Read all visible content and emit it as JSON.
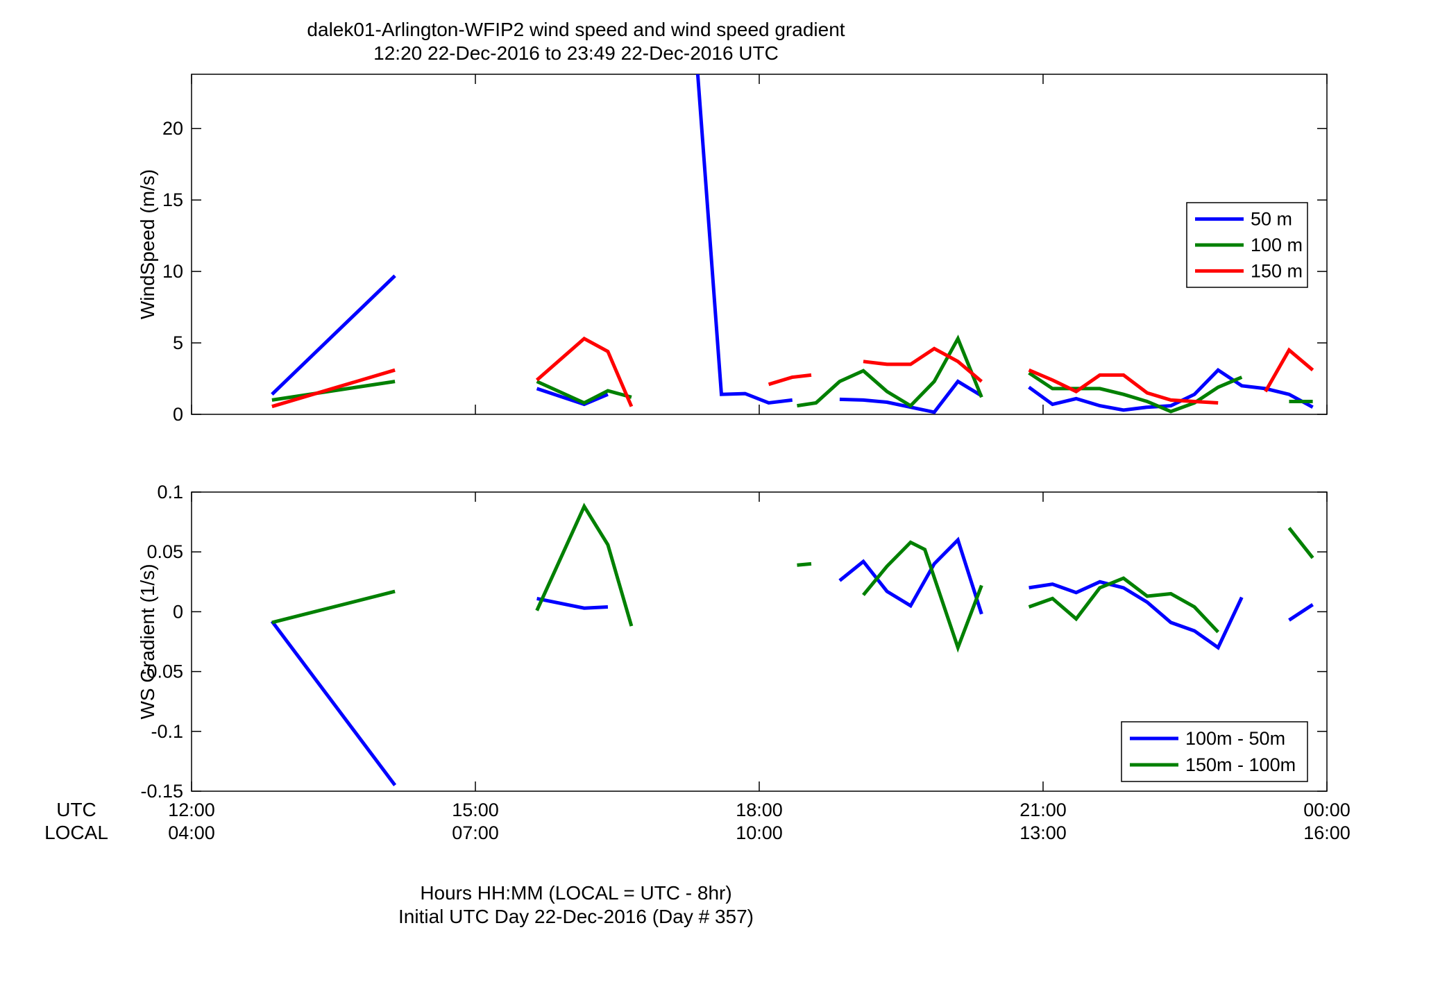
{
  "figure": {
    "title_line1": "dalek01-Arlington-WFIP2  wind speed and wind speed gradient",
    "title_line2": "12:20 22-Dec-2016 to 23:49 22-Dec-2016  UTC",
    "xlabel_line1": "Hours HH:MM  (LOCAL = UTC - 8hr)",
    "xlabel_line2": "Initial UTC Day 22-Dec-2016 (Day # 357)",
    "row_label_utc": "UTC",
    "row_label_local": "LOCAL",
    "x_ticks_utc": [
      "12:00",
      "15:00",
      "18:00",
      "21:00",
      "00:00"
    ],
    "x_ticks_local": [
      "04:00",
      "07:00",
      "10:00",
      "13:00",
      "16:00"
    ]
  },
  "chart_data": [
    {
      "type": "line",
      "ylabel": "WindSpeed (m/s)",
      "xlim": [
        12,
        24
      ],
      "ylim": [
        0,
        23.8
      ],
      "yticks": [
        0,
        5,
        10,
        15,
        20
      ],
      "ytick_labels": [
        "0",
        "5",
        "10",
        "15",
        "20"
      ],
      "legend": "top-right",
      "series": [
        {
          "name": "50 m",
          "color": "#0000ff",
          "segments": [
            [
              [
                12.85,
                1.4
              ],
              [
                14.15,
                9.7
              ]
            ],
            [
              [
                15.65,
                1.8
              ],
              [
                16.15,
                0.7
              ],
              [
                16.4,
                1.4
              ]
            ],
            [
              [
                17.35,
                23.8
              ],
              [
                17.6,
                1.4
              ],
              [
                17.85,
                1.45
              ],
              [
                18.1,
                0.8
              ],
              [
                18.35,
                1.0
              ]
            ],
            [
              [
                18.85,
                1.05
              ],
              [
                19.1,
                1.0
              ],
              [
                19.35,
                0.85
              ],
              [
                19.6,
                0.5
              ],
              [
                19.85,
                0.15
              ],
              [
                20.1,
                2.3
              ],
              [
                20.35,
                1.3
              ]
            ],
            [
              [
                20.85,
                1.9
              ],
              [
                21.1,
                0.7
              ],
              [
                21.35,
                1.1
              ],
              [
                21.6,
                0.6
              ],
              [
                21.85,
                0.3
              ],
              [
                22.1,
                0.5
              ],
              [
                22.35,
                0.6
              ],
              [
                22.6,
                1.4
              ],
              [
                22.85,
                3.1
              ],
              [
                23.1,
                2.0
              ],
              [
                23.35,
                1.8
              ],
              [
                23.6,
                1.4
              ],
              [
                23.85,
                0.5
              ]
            ]
          ]
        },
        {
          "name": "100 m",
          "color": "#008000",
          "segments": [
            [
              [
                12.85,
                1.0
              ],
              [
                14.15,
                2.3
              ]
            ],
            [
              [
                15.65,
                2.3
              ],
              [
                16.15,
                0.8
              ],
              [
                16.4,
                1.65
              ],
              [
                16.65,
                1.2
              ]
            ],
            [
              [
                18.4,
                0.6
              ],
              [
                18.6,
                0.8
              ],
              [
                18.85,
                2.3
              ],
              [
                19.1,
                3.05
              ],
              [
                19.35,
                1.6
              ],
              [
                19.6,
                0.6
              ],
              [
                19.85,
                2.3
              ],
              [
                20.1,
                5.3
              ],
              [
                20.35,
                1.2
              ]
            ],
            [
              [
                20.85,
                2.9
              ],
              [
                21.1,
                1.8
              ],
              [
                21.35,
                1.8
              ],
              [
                21.6,
                1.8
              ],
              [
                21.85,
                1.4
              ],
              [
                22.1,
                0.9
              ],
              [
                22.35,
                0.2
              ],
              [
                22.6,
                0.8
              ],
              [
                22.85,
                1.9
              ],
              [
                23.1,
                2.6
              ]
            ],
            [
              [
                23.6,
                0.9
              ],
              [
                23.85,
                0.9
              ]
            ]
          ]
        },
        {
          "name": "150 m",
          "color": "#ff0000",
          "segments": [
            [
              [
                12.85,
                0.55
              ],
              [
                14.15,
                3.1
              ]
            ],
            [
              [
                15.65,
                2.4
              ],
              [
                16.15,
                5.3
              ],
              [
                16.4,
                4.4
              ],
              [
                16.65,
                0.55
              ]
            ],
            [
              [
                18.1,
                2.1
              ],
              [
                18.35,
                2.6
              ],
              [
                18.55,
                2.75
              ]
            ],
            [
              [
                19.1,
                3.7
              ],
              [
                19.35,
                3.5
              ],
              [
                19.6,
                3.5
              ],
              [
                19.85,
                4.6
              ],
              [
                20.1,
                3.7
              ],
              [
                20.35,
                2.3
              ]
            ],
            [
              [
                20.85,
                3.1
              ],
              [
                21.1,
                2.4
              ],
              [
                21.35,
                1.6
              ],
              [
                21.6,
                2.75
              ],
              [
                21.85,
                2.75
              ],
              [
                22.1,
                1.5
              ],
              [
                22.35,
                1.0
              ],
              [
                22.6,
                0.9
              ],
              [
                22.85,
                0.8
              ]
            ],
            [
              [
                23.35,
                1.6
              ],
              [
                23.6,
                4.5
              ],
              [
                23.85,
                3.1
              ]
            ]
          ]
        }
      ]
    },
    {
      "type": "line",
      "ylabel": "WS Gradient (1/s)",
      "xlim": [
        12,
        24
      ],
      "ylim": [
        -0.15,
        0.1
      ],
      "yticks": [
        -0.15,
        -0.1,
        -0.05,
        0,
        0.05,
        0.1
      ],
      "ytick_labels": [
        "-0.15",
        "-0.1",
        "-0.05",
        "0",
        "0.05",
        "0.1"
      ],
      "legend": "bottom-right",
      "series": [
        {
          "name": "100m - 50m",
          "color": "#0000ff",
          "segments": [
            [
              [
                12.85,
                -0.008
              ],
              [
                14.15,
                -0.145
              ]
            ],
            [
              [
                15.65,
                0.011
              ],
              [
                16.15,
                0.003
              ],
              [
                16.4,
                0.004
              ]
            ],
            [
              [
                18.85,
                0.026
              ],
              [
                19.1,
                0.042
              ],
              [
                19.35,
                0.017
              ],
              [
                19.6,
                0.005
              ],
              [
                19.85,
                0.04
              ],
              [
                20.1,
                0.06
              ],
              [
                20.35,
                -0.002
              ]
            ],
            [
              [
                20.85,
                0.02
              ],
              [
                21.1,
                0.023
              ],
              [
                21.35,
                0.016
              ],
              [
                21.6,
                0.025
              ],
              [
                21.85,
                0.02
              ],
              [
                22.1,
                0.008
              ],
              [
                22.35,
                -0.009
              ],
              [
                22.6,
                -0.016
              ],
              [
                22.85,
                -0.03
              ],
              [
                23.1,
                0.012
              ]
            ],
            [
              [
                23.6,
                -0.007
              ],
              [
                23.85,
                0.006
              ]
            ]
          ]
        },
        {
          "name": "150m - 100m",
          "color": "#008000",
          "segments": [
            [
              [
                12.85,
                -0.009
              ],
              [
                14.15,
                0.017
              ]
            ],
            [
              [
                15.65,
                0.001
              ],
              [
                16.15,
                0.088
              ],
              [
                16.4,
                0.056
              ],
              [
                16.65,
                -0.012
              ]
            ],
            [
              [
                18.4,
                0.039
              ],
              [
                18.55,
                0.04
              ]
            ],
            [
              [
                19.1,
                0.014
              ],
              [
                19.35,
                0.038
              ],
              [
                19.6,
                0.058
              ],
              [
                19.75,
                0.052
              ],
              [
                20.1,
                -0.03
              ],
              [
                20.35,
                0.022
              ]
            ],
            [
              [
                20.85,
                0.004
              ],
              [
                21.1,
                0.011
              ],
              [
                21.35,
                -0.006
              ],
              [
                21.6,
                0.02
              ],
              [
                21.85,
                0.028
              ],
              [
                22.1,
                0.013
              ],
              [
                22.35,
                0.015
              ],
              [
                22.6,
                0.004
              ],
              [
                22.85,
                -0.017
              ]
            ],
            [
              [
                23.6,
                0.07
              ],
              [
                23.85,
                0.045
              ]
            ]
          ]
        }
      ]
    }
  ]
}
